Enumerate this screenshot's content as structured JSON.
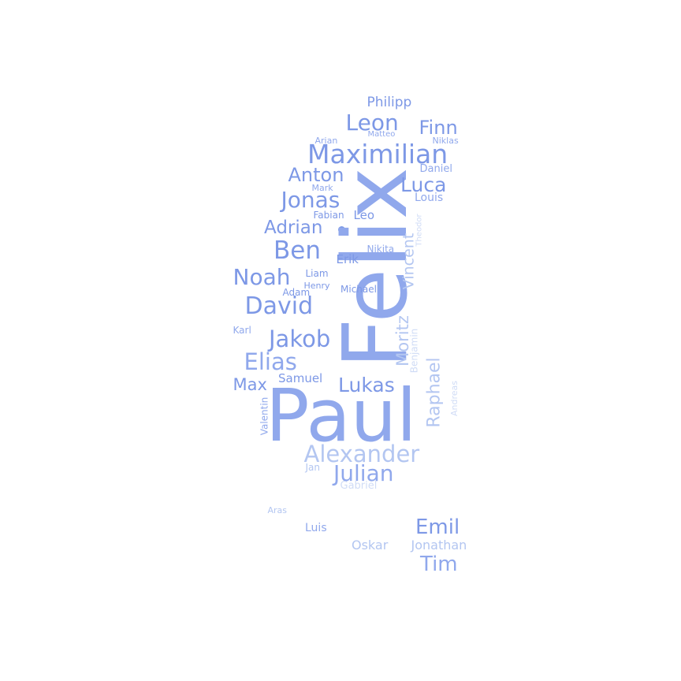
{
  "wordcloud": {
    "words": [
      {
        "id": "w-paul",
        "text": "Paul",
        "color": "#90a8ec"
      },
      {
        "id": "w-felix",
        "text": "Felix",
        "color": "#90a8ec"
      },
      {
        "id": "w-maximilian",
        "text": "Maximilian",
        "color": "#7d98e6"
      },
      {
        "id": "w-alexander",
        "text": "Alexander",
        "color": "#b3c6f1"
      },
      {
        "id": "w-julian",
        "text": "Julian",
        "color": "#90a8ec"
      },
      {
        "id": "w-leon",
        "text": "Leon",
        "color": "#7d98e6"
      },
      {
        "id": "w-jonas",
        "text": "Jonas",
        "color": "#7d98e6"
      },
      {
        "id": "w-ben",
        "text": "Ben",
        "color": "#7d98e6"
      },
      {
        "id": "w-david",
        "text": "David",
        "color": "#7d98e6"
      },
      {
        "id": "w-jakob",
        "text": "Jakob",
        "color": "#7d98e6"
      },
      {
        "id": "w-elias",
        "text": "Elias",
        "color": "#90a8ec"
      },
      {
        "id": "w-noah",
        "text": "Noah",
        "color": "#7d98e6"
      },
      {
        "id": "w-lukas",
        "text": "Lukas",
        "color": "#7d98e6"
      },
      {
        "id": "w-emil",
        "text": "Emil",
        "color": "#7d98e6"
      },
      {
        "id": "w-tim",
        "text": "Tim",
        "color": "#90a8ec"
      },
      {
        "id": "w-anton",
        "text": "Anton",
        "color": "#7d98e6"
      },
      {
        "id": "w-luca",
        "text": "Luca",
        "color": "#7d98e6"
      },
      {
        "id": "w-finn",
        "text": "Finn",
        "color": "#7d98e6"
      },
      {
        "id": "w-adrian",
        "text": "Adrian",
        "color": "#7d98e6"
      },
      {
        "id": "w-max",
        "text": "Max",
        "color": "#7d98e6"
      },
      {
        "id": "w-raphael",
        "text": "Raphael",
        "color": "#b3c6f1"
      },
      {
        "id": "w-moritz",
        "text": "Moritz",
        "color": "#b3c6f1"
      },
      {
        "id": "w-vincent",
        "text": "Vincent",
        "color": "#b3c6f1"
      },
      {
        "id": "w-philipp",
        "text": "Philipp",
        "color": "#7d98e6"
      },
      {
        "id": "w-oskar",
        "text": "Oskar",
        "color": "#b3c6f1"
      },
      {
        "id": "w-jonathan",
        "text": "Jonathan",
        "color": "#b3c6f1"
      },
      {
        "id": "w-samuel",
        "text": "Samuel",
        "color": "#7d98e6"
      },
      {
        "id": "w-erik",
        "text": "Erik",
        "color": "#7d98e6"
      },
      {
        "id": "w-leo",
        "text": "Leo",
        "color": "#7d98e6"
      },
      {
        "id": "w-luis",
        "text": "Luis",
        "color": "#90a8ec"
      },
      {
        "id": "w-louis",
        "text": "Louis",
        "color": "#90a8ec"
      },
      {
        "id": "w-daniel",
        "text": "Daniel",
        "color": "#90a8ec"
      },
      {
        "id": "w-liam",
        "text": "Liam",
        "color": "#7d98e6"
      },
      {
        "id": "w-adam",
        "text": "Adam",
        "color": "#7d98e6"
      },
      {
        "id": "w-michael",
        "text": "Michael",
        "color": "#7d98e6"
      },
      {
        "id": "w-henry",
        "text": "Henry",
        "color": "#7d98e6"
      },
      {
        "id": "w-nikita",
        "text": "Nikita",
        "color": "#90a8ec"
      },
      {
        "id": "w-fabian",
        "text": "Fabian",
        "color": "#7d98e6"
      },
      {
        "id": "w-mark",
        "text": "Mark",
        "color": "#90a8ec"
      },
      {
        "id": "w-arian",
        "text": "Arian",
        "color": "#90a8ec"
      },
      {
        "id": "w-matteo",
        "text": "Matteo",
        "color": "#90a8ec"
      },
      {
        "id": "w-niklas",
        "text": "Niklas",
        "color": "#90a8ec"
      },
      {
        "id": "w-karl",
        "text": "Karl",
        "color": "#90a8ec"
      },
      {
        "id": "w-valentin",
        "text": "Valentin",
        "color": "#90a8ec"
      },
      {
        "id": "w-jan",
        "text": "Jan",
        "color": "#b3c6f1"
      },
      {
        "id": "w-gabriel",
        "text": "Gabriel",
        "color": "#d0dcf6"
      },
      {
        "id": "w-aras",
        "text": "Aras",
        "color": "#b3c6f1"
      },
      {
        "id": "w-theodor",
        "text": "Theodor",
        "color": "#d0dcf6"
      },
      {
        "id": "w-benjamin",
        "text": "Benjamin",
        "color": "#d0dcf6"
      },
      {
        "id": "w-andreas",
        "text": "Andreas",
        "color": "#d0dcf6"
      }
    ]
  }
}
